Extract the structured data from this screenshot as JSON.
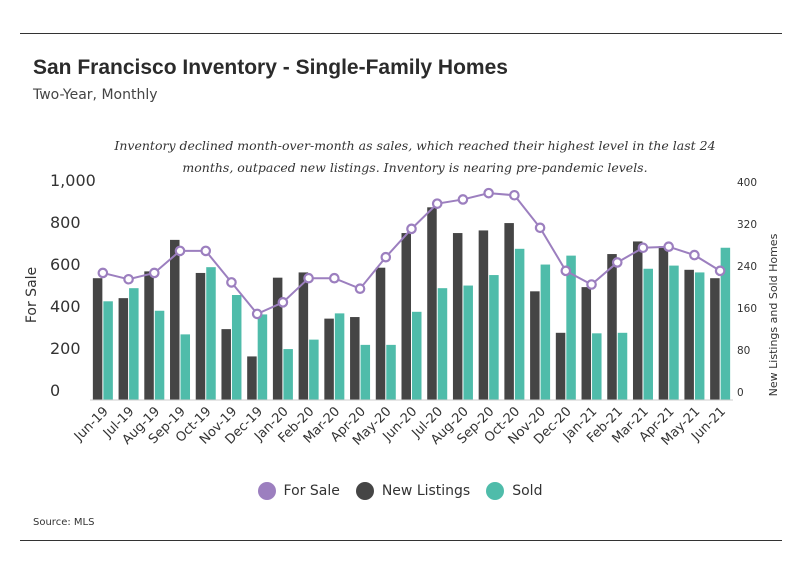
{
  "header": {
    "title": "San Francisco Inventory - Single-Family Homes",
    "subtitle": "Two-Year, Monthly",
    "annotation": "Inventory declined month-over-month as sales, which reached their highest level in the last 24 months, outpaced new listings. Inventory is nearing pre-pandemic levels."
  },
  "footer": {
    "source": "Source:  MLS"
  },
  "colors": {
    "for_sale": "#9c7fbf",
    "new_listings": "#454545",
    "sold": "#4fbcaa"
  },
  "chart_data": {
    "type": "bar",
    "categories": [
      "Jun-19",
      "Jul-19",
      "Aug-19",
      "Sep-19",
      "Oct-19",
      "Nov-19",
      "Dec-19",
      "Jan-20",
      "Feb-20",
      "Mar-20",
      "Apr-20",
      "May-20",
      "Jun-20",
      "Jul-20",
      "Aug-20",
      "Sep-20",
      "Oct-20",
      "Nov-20",
      "Dec-20",
      "Jan-21",
      "Feb-21",
      "Mar-21",
      "Apr-21",
      "May-21",
      "Jun-21"
    ],
    "ylabel": "For Sale",
    "y2label": "New Listings and Sold Homes",
    "ylim": [
      0,
      1000
    ],
    "y2lim": [
      0,
      400
    ],
    "yticks": [
      "0",
      "200",
      "400",
      "600",
      "800",
      "1,000"
    ],
    "y2ticks": [
      "0",
      "80",
      "160",
      "240",
      "320",
      "400"
    ],
    "grid": false,
    "legend_position": "bottom",
    "series": [
      {
        "name": "For Sale",
        "type": "line",
        "axis": "left",
        "values": [
          605,
          575,
          605,
          710,
          710,
          560,
          410,
          465,
          580,
          580,
          530,
          680,
          815,
          935,
          955,
          985,
          975,
          820,
          615,
          550,
          655,
          725,
          730,
          690,
          615
        ]
      },
      {
        "name": "New Listings",
        "type": "bar",
        "axis": "right",
        "values": [
          232,
          194,
          245,
          305,
          242,
          135,
          83,
          233,
          243,
          155,
          158,
          252,
          318,
          367,
          318,
          323,
          337,
          207,
          128,
          215,
          278,
          302,
          293,
          248,
          232
        ]
      },
      {
        "name": "Sold",
        "type": "bar",
        "axis": "right",
        "values": [
          188,
          213,
          170,
          125,
          253,
          200,
          163,
          97,
          115,
          165,
          105,
          105,
          168,
          213,
          218,
          238,
          288,
          258,
          275,
          127,
          128,
          250,
          256,
          243,
          290
        ]
      }
    ]
  }
}
